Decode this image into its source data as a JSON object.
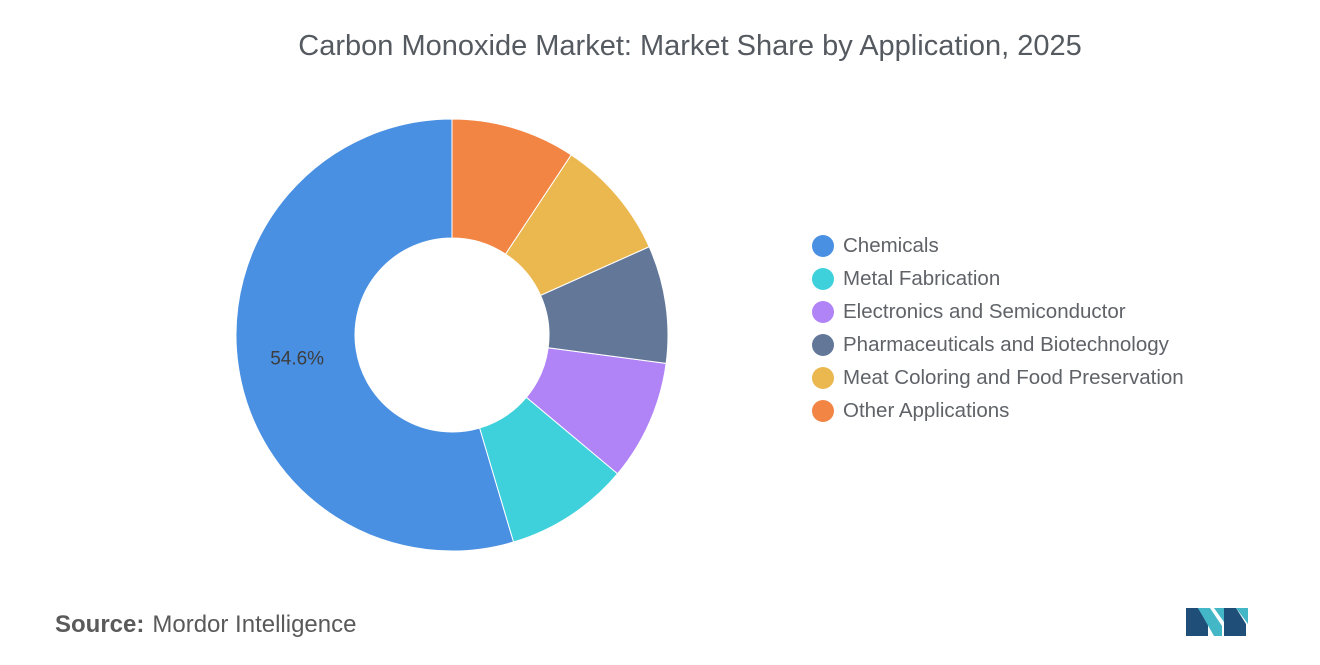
{
  "chart_data": {
    "type": "pie",
    "title": "Carbon Monoxide Market: Market Share by Application, 2025",
    "donut": true,
    "legend_position": "right",
    "categories": [
      "Chemicals",
      "Metal Fabrication",
      "Electronics and Semiconductor",
      "Pharmaceuticals and Biotechnology",
      "Meat Coloring and Food Preservation",
      "Other Applications"
    ],
    "values": [
      54.6,
      9.3,
      9.0,
      8.8,
      9.0,
      9.3
    ],
    "colors": [
      "#4a90e2",
      "#3ed1dc",
      "#b083f7",
      "#637899",
      "#ebb84f",
      "#f28444"
    ],
    "data_labels": [
      "54.6%",
      "",
      "",
      "",
      "",
      ""
    ]
  },
  "source": {
    "label": "Source:",
    "value": "Mordor Intelligence"
  },
  "logo": {
    "icon": "mordor-intelligence-logo"
  }
}
